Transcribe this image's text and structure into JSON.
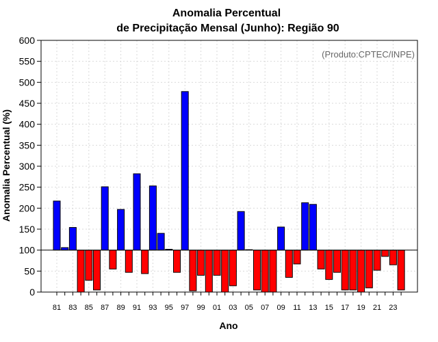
{
  "chart_data": {
    "type": "bar",
    "title": "Anomalia Percentual",
    "subtitle": "de Precipitação Mensal (Junho): Região 90",
    "xlabel": "Ano",
    "ylabel": "Anomalia Percentual (%)",
    "annotation": "(Produto:CPTEC/INPE)",
    "baseline": 100,
    "ylim": [
      0,
      600
    ],
    "yticks": [
      0,
      50,
      100,
      150,
      200,
      250,
      300,
      350,
      400,
      450,
      500,
      550,
      600
    ],
    "grid": true,
    "colors": {
      "above": "#0000ff",
      "below": "#ff0000",
      "outline": "#000000",
      "grid": "#d9d9d9"
    },
    "categories": [
      "81",
      "82",
      "83",
      "84",
      "85",
      "86",
      "87",
      "88",
      "89",
      "90",
      "91",
      "92",
      "93",
      "94",
      "95",
      "96",
      "97",
      "98",
      "99",
      "00",
      "01",
      "02",
      "03",
      "04",
      "05",
      "06",
      "07",
      "08",
      "09",
      "10",
      "11",
      "12",
      "13",
      "14",
      "15",
      "16",
      "17",
      "18",
      "19",
      "20",
      "21",
      "22",
      "23",
      "24"
    ],
    "xtick_labels": [
      "81",
      "83",
      "85",
      "87",
      "89",
      "91",
      "93",
      "95",
      "97",
      "99",
      "01",
      "03",
      "05",
      "07",
      "09",
      "11",
      "13",
      "15",
      "17",
      "19",
      "21",
      "23"
    ],
    "values": [
      217,
      106,
      154,
      0,
      28,
      5,
      251,
      55,
      197,
      47,
      282,
      44,
      253,
      140,
      102,
      47,
      478,
      3,
      40,
      0,
      40,
      0,
      15,
      192,
      101,
      5,
      0,
      0,
      155,
      35,
      67,
      213,
      209,
      55,
      30,
      47,
      5,
      5,
      0,
      10,
      52,
      85,
      65,
      5
    ]
  }
}
